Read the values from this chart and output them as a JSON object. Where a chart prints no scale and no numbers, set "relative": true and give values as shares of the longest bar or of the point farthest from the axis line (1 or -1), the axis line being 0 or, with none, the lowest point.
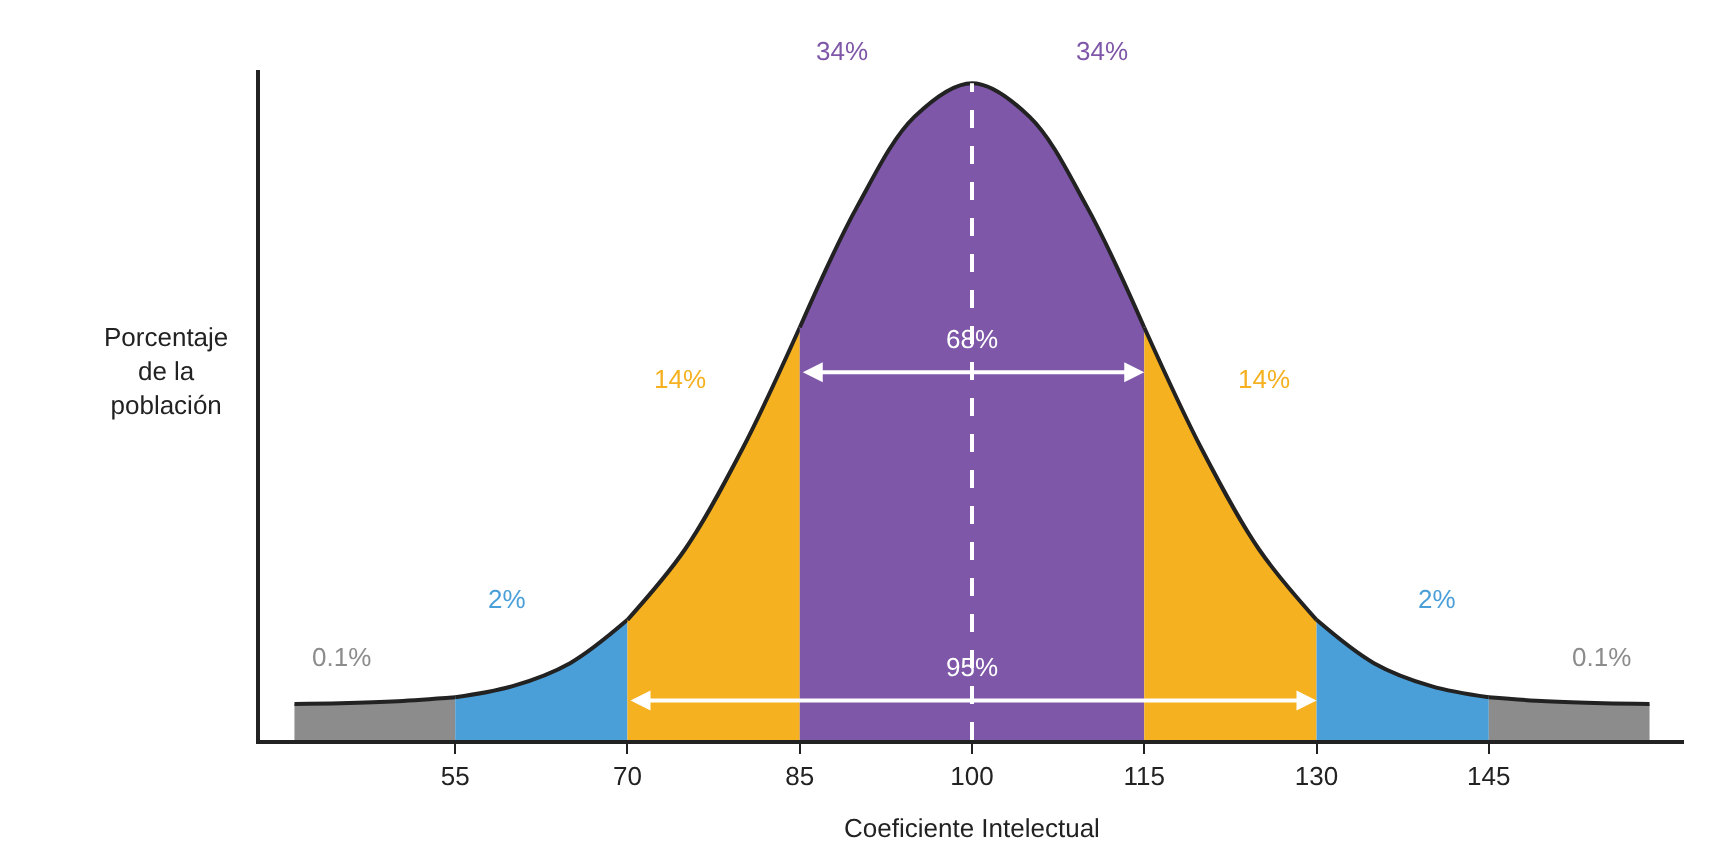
{
  "chart_data": {
    "type": "area",
    "relative": true,
    "xlabel": "Coeficiente Intelectual",
    "ylabel": "Porcentaje de la población",
    "xlim": [
      38,
      162
    ],
    "xticks": [
      55,
      70,
      85,
      100,
      115,
      130,
      145
    ],
    "series": [
      {
        "color": "#8c8c8c",
        "x": [
          41,
          45,
          50,
          55
        ],
        "values": [
          0.055,
          0.056,
          0.059,
          0.065
        ]
      },
      {
        "color": "#4a9fd8",
        "x": [
          55,
          60,
          65,
          70
        ],
        "values": [
          0.065,
          0.082,
          0.117,
          0.183
        ]
      },
      {
        "color": "#f5b120",
        "x": [
          70,
          75,
          80,
          85
        ],
        "values": [
          0.183,
          0.29,
          0.443,
          0.628
        ]
      },
      {
        "color": "#7e57a8",
        "x": [
          85,
          90,
          95,
          100,
          105,
          110,
          115
        ],
        "values": [
          0.628,
          0.812,
          0.949,
          1,
          0.949,
          0.812,
          0.628
        ]
      },
      {
        "color": "#f5b120",
        "x": [
          115,
          120,
          125,
          130
        ],
        "values": [
          0.628,
          0.443,
          0.29,
          0.183
        ]
      },
      {
        "color": "#4a9fd8",
        "x": [
          130,
          135,
          140,
          145
        ],
        "values": [
          0.183,
          0.117,
          0.082,
          0.065
        ]
      },
      {
        "color": "#8c8c8c",
        "x": [
          145,
          150,
          155,
          159
        ],
        "values": [
          0.065,
          0.059,
          0.056,
          0.055
        ]
      }
    ],
    "ref_lines": [
      {
        "axis": "x",
        "value": 100,
        "color": "#ffffff",
        "line_style": "dashed"
      }
    ],
    "annotations": [
      "0.1%",
      "2%",
      "14%",
      "34%",
      "34%",
      {
        "text": "68%",
        "x": 100,
        "y": 0.61
      },
      "14%",
      "2%",
      {
        "text": "95%",
        "x": 100,
        "y": 0.11
      },
      "0.1%"
    ]
  }
}
